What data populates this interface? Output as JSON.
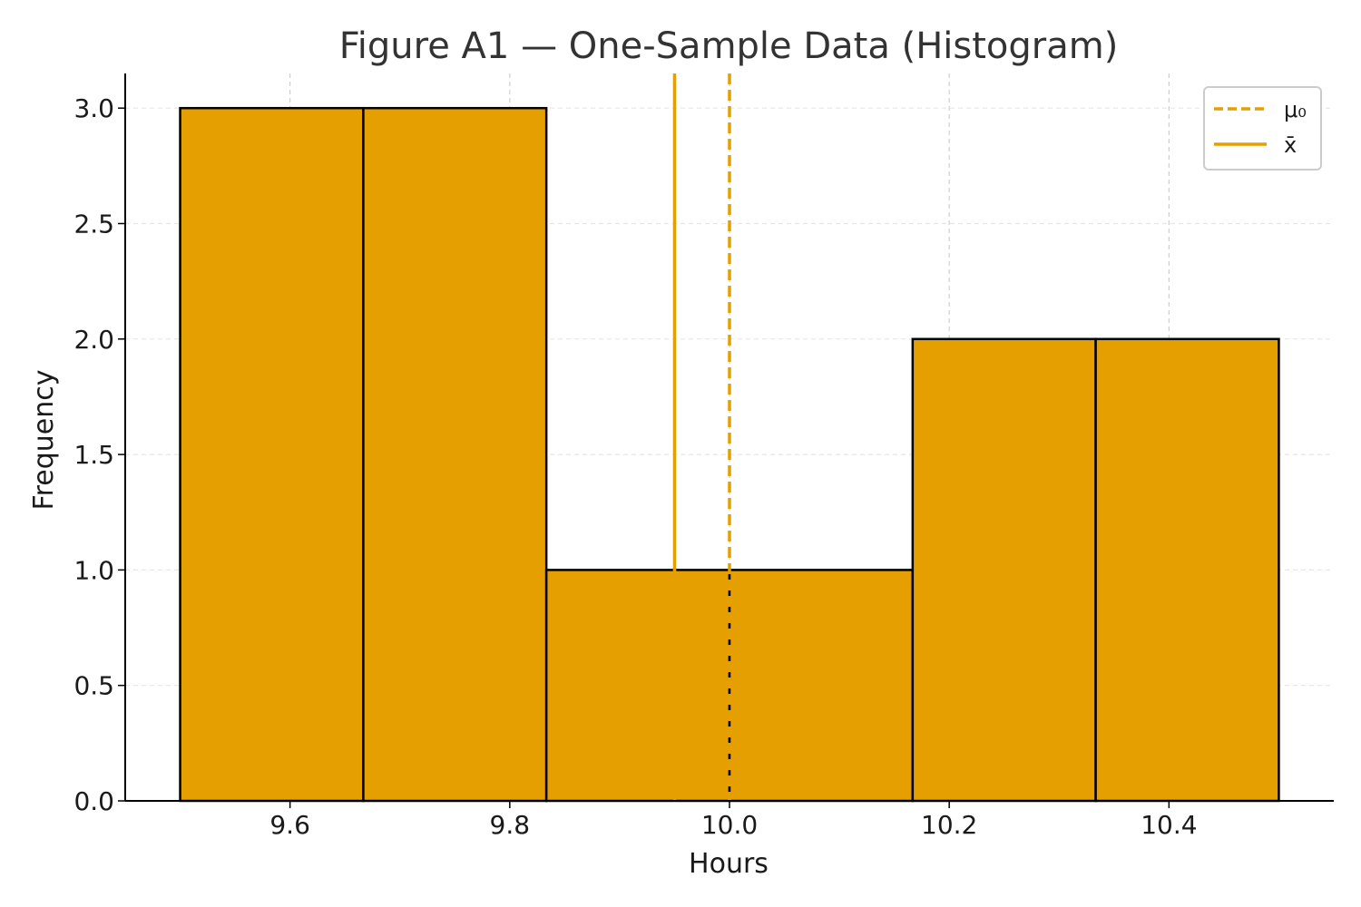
{
  "chart_data": {
    "type": "bar",
    "title": "Figure A1 — One-Sample Data (Histogram)",
    "xlabel": "Hours",
    "ylabel": "Frequency",
    "xlim": [
      9.45,
      10.55
    ],
    "ylim": [
      0,
      3.15
    ],
    "xticks": [
      9.6,
      9.8,
      10.0,
      10.2,
      10.4
    ],
    "xtick_labels": [
      "9.6",
      "9.8",
      "10.0",
      "10.2",
      "10.4"
    ],
    "yticks": [
      0,
      0.5,
      1.0,
      1.5,
      2.0,
      2.5,
      3.0
    ],
    "ytick_labels": [
      "0.0",
      "0.5",
      "1.0",
      "1.5",
      "2.0",
      "2.5",
      "3.0"
    ],
    "bins": [
      9.5,
      9.6667,
      9.8333,
      10.0,
      10.1667,
      10.3333,
      10.5
    ],
    "counts": [
      3,
      3,
      1,
      1,
      2,
      2
    ],
    "grid": true,
    "legend_position": "top-right",
    "reference_lines": [
      {
        "name": "μ₀",
        "x": 10.0,
        "style": "dashed"
      },
      {
        "name": "x̄",
        "x": 9.95,
        "style": "solid"
      }
    ],
    "colors": {
      "bar": "#E69F00",
      "edge": "#000000",
      "line": "#E69F00"
    }
  }
}
